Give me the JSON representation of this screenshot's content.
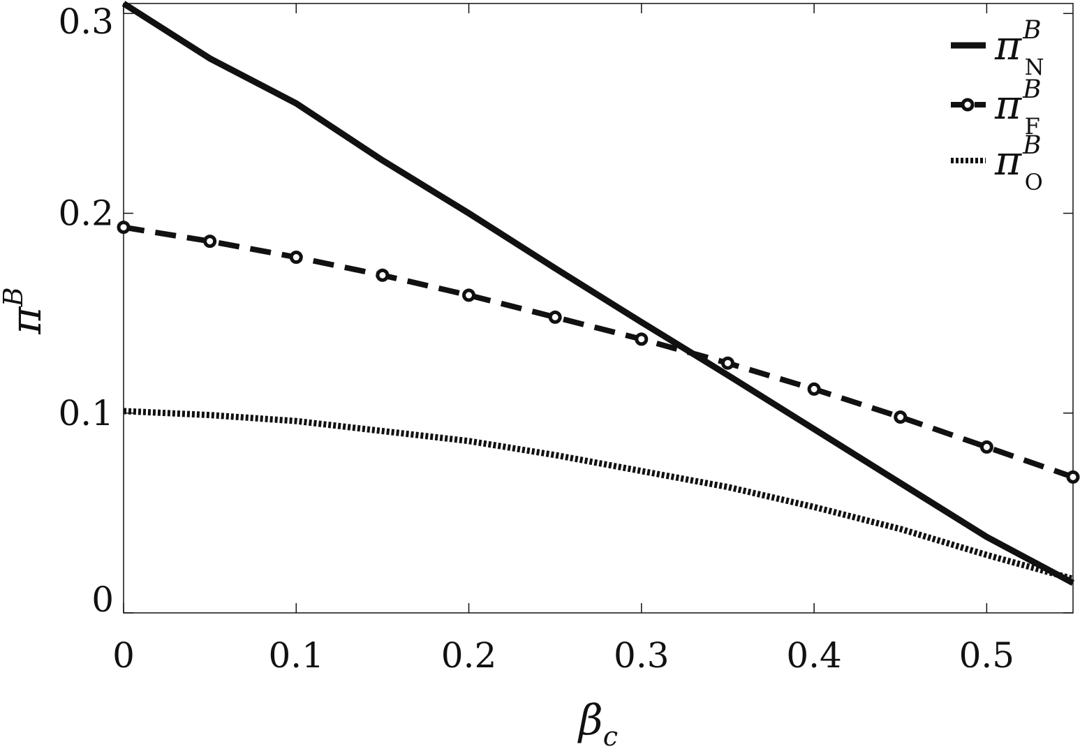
{
  "chart_data": {
    "type": "line",
    "title": "",
    "xlabel": {
      "base": "β",
      "sub": "c"
    },
    "ylabel": {
      "base": "π",
      "sup": "B"
    },
    "xlim": [
      0,
      0.55
    ],
    "ylim": [
      0,
      0.305
    ],
    "xticks": [
      0,
      0.1,
      0.2,
      0.3,
      0.4,
      0.5
    ],
    "xtick_labels": [
      "0",
      "0.1",
      "0.2",
      "0.3",
      "0.4",
      "0.5"
    ],
    "yticks": [
      0,
      0.1,
      0.2,
      0.3
    ],
    "ytick_labels": [
      "0",
      "0.1",
      "0.2",
      "0.3"
    ],
    "grid": false,
    "legend_position": "top-right",
    "series": [
      {
        "name": {
          "base": "π",
          "sup": "B",
          "sub": "N"
        },
        "style": "solid",
        "color": "#111111",
        "x": [
          0,
          0.05,
          0.1,
          0.15,
          0.2,
          0.25,
          0.3,
          0.35,
          0.4,
          0.45,
          0.5,
          0.55
        ],
        "y": [
          0.305,
          0.2775,
          0.255,
          0.2265,
          0.2,
          0.1725,
          0.1455,
          0.119,
          0.092,
          0.065,
          0.038,
          0.015
        ]
      },
      {
        "name": {
          "base": "π",
          "sup": "B",
          "sub": "F"
        },
        "style": "dashed-circle",
        "color": "#111111",
        "x": [
          0,
          0.05,
          0.1,
          0.15,
          0.2,
          0.25,
          0.3,
          0.35,
          0.4,
          0.45,
          0.5,
          0.55
        ],
        "y": [
          0.193,
          0.186,
          0.178,
          0.169,
          0.159,
          0.148,
          0.137,
          0.125,
          0.112,
          0.098,
          0.083,
          0.068
        ]
      },
      {
        "name": {
          "base": "π",
          "sup": "B",
          "sub": "O"
        },
        "style": "dotted",
        "color": "#111111",
        "x": [
          0,
          0.05,
          0.1,
          0.15,
          0.2,
          0.25,
          0.3,
          0.35,
          0.4,
          0.45,
          0.5,
          0.55
        ],
        "y": [
          0.101,
          0.099,
          0.096,
          0.091,
          0.086,
          0.079,
          0.071,
          0.063,
          0.053,
          0.042,
          0.029,
          0.017
        ]
      }
    ]
  }
}
